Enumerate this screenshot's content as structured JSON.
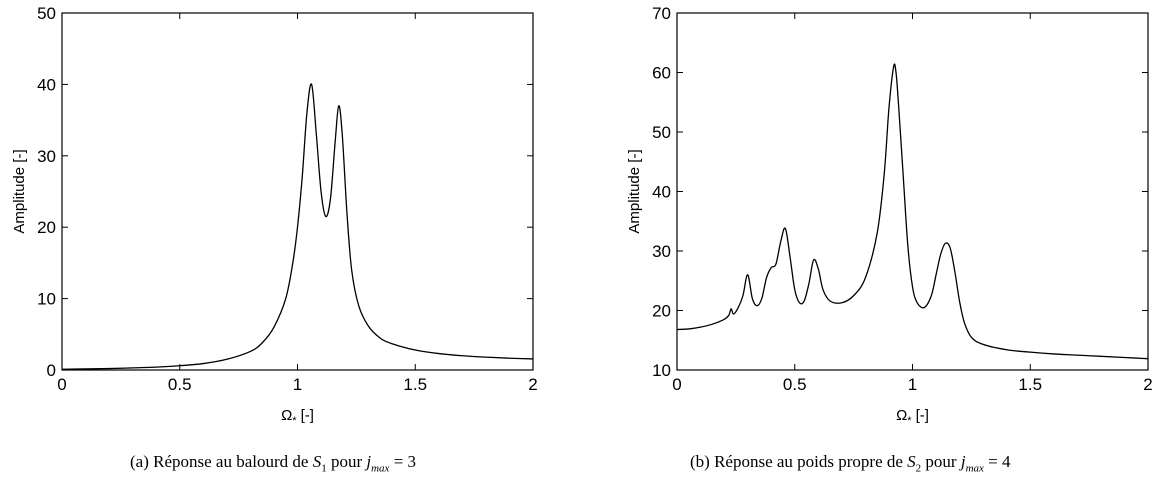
{
  "chart_data": [
    {
      "type": "line",
      "xlabel": {
        "symbol": "Ω",
        "sub": "*",
        "unit": "[-]"
      },
      "ylabel": "Amplitude [-]",
      "xlim": [
        0,
        2
      ],
      "ylim": [
        0,
        50
      ],
      "xticks": [
        0,
        0.5,
        1,
        1.5,
        2
      ],
      "xtick_labels": [
        "0",
        "0.5",
        "1",
        "1.5",
        "2"
      ],
      "yticks": [
        0,
        10,
        20,
        30,
        40,
        50
      ],
      "ytick_labels": [
        "0",
        "10",
        "20",
        "30",
        "40",
        "50"
      ],
      "grid": false,
      "series": [
        {
          "color": "#000000",
          "x": [
            0,
            0.1,
            0.2,
            0.3,
            0.4,
            0.5,
            0.6,
            0.7,
            0.8,
            0.85,
            0.9,
            0.95,
            0.98,
            1.0,
            1.02,
            1.04,
            1.06,
            1.08,
            1.1,
            1.12,
            1.14,
            1.16,
            1.175,
            1.19,
            1.21,
            1.23,
            1.26,
            1.3,
            1.35,
            1.4,
            1.5,
            1.6,
            1.7,
            1.8,
            1.9,
            2.0
          ],
          "y": [
            0.1,
            0.15,
            0.2,
            0.3,
            0.4,
            0.6,
            0.9,
            1.5,
            2.6,
            3.8,
            6,
            10,
            15,
            20,
            27,
            36,
            40,
            33,
            25,
            21.5,
            24,
            32,
            37,
            33,
            22,
            14,
            9,
            6.2,
            4.5,
            3.7,
            2.8,
            2.3,
            2.0,
            1.8,
            1.65,
            1.55
          ]
        }
      ]
    },
    {
      "type": "line",
      "xlabel": {
        "symbol": "Ω",
        "sub": "*",
        "unit": "[-]"
      },
      "ylabel": "Amplitude [-]",
      "xlim": [
        0,
        2
      ],
      "ylim": [
        10,
        70
      ],
      "xticks": [
        0,
        0.5,
        1,
        1.5,
        2
      ],
      "xtick_labels": [
        "0",
        "0.5",
        "1",
        "1.5",
        "2"
      ],
      "yticks": [
        10,
        20,
        30,
        40,
        50,
        60,
        70
      ],
      "ytick_labels": [
        "10",
        "20",
        "30",
        "40",
        "50",
        "60",
        "70"
      ],
      "grid": false,
      "series": [
        {
          "color": "#000000",
          "x": [
            0,
            0.05,
            0.1,
            0.15,
            0.2,
            0.22,
            0.23,
            0.24,
            0.26,
            0.28,
            0.3,
            0.32,
            0.34,
            0.36,
            0.38,
            0.4,
            0.42,
            0.44,
            0.46,
            0.48,
            0.5,
            0.52,
            0.54,
            0.56,
            0.58,
            0.6,
            0.62,
            0.65,
            0.7,
            0.75,
            0.8,
            0.85,
            0.88,
            0.9,
            0.92,
            0.93,
            0.94,
            0.96,
            0.98,
            1.0,
            1.02,
            1.05,
            1.08,
            1.1,
            1.12,
            1.14,
            1.16,
            1.18,
            1.2,
            1.22,
            1.25,
            1.3,
            1.4,
            1.5,
            1.6,
            1.7,
            1.8,
            1.9,
            2.0
          ],
          "y": [
            16.8,
            16.9,
            17.2,
            17.7,
            18.5,
            19.2,
            20.3,
            19.4,
            20.5,
            22.5,
            26,
            22,
            20.8,
            22,
            25.5,
            27.2,
            27.8,
            31.5,
            33.8,
            29,
            23.5,
            21.3,
            21.6,
            24.5,
            28.5,
            27,
            23.5,
            21.6,
            21.3,
            22.5,
            25.5,
            33,
            43,
            54,
            61,
            60,
            55,
            43,
            31,
            24,
            21.3,
            20.5,
            22.5,
            26,
            29.5,
            31.3,
            30.5,
            26.5,
            21.5,
            18,
            15.5,
            14.3,
            13.4,
            13,
            12.7,
            12.5,
            12.3,
            12.1,
            11.9
          ]
        }
      ]
    }
  ],
  "captions": [
    {
      "label": "(a)",
      "text1": "Réponse au balourd de",
      "var": "S",
      "var_sub": "1",
      "text2": "pour",
      "jvar": "j",
      "jvar_sub": "max",
      "value": "= 3"
    },
    {
      "label": "(b)",
      "text1": "Réponse au poids propre de",
      "var": "S",
      "var_sub": "2",
      "text2": "pour",
      "jvar": "j",
      "jvar_sub": "max",
      "value": "= 4"
    }
  ]
}
